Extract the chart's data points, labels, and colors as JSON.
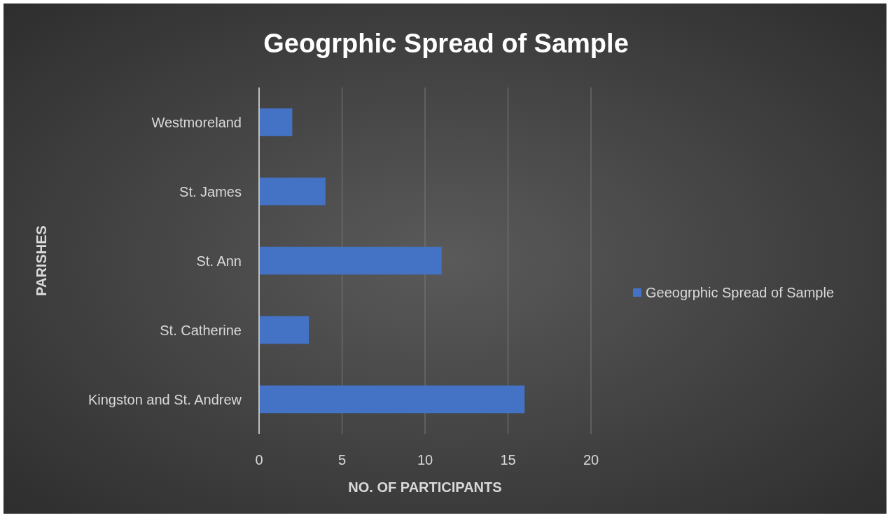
{
  "chart_data": {
    "type": "bar",
    "orientation": "horizontal",
    "title": "Geogrphic Spread of Sample",
    "xlabel": "NO. OF PARTICIPANTS",
    "ylabel": "PARISHES",
    "categories": [
      "Westmoreland",
      "St. James",
      "St. Ann",
      "St. Catherine",
      "Kingston and St. Andrew"
    ],
    "series": [
      {
        "name": "Geeogrphic Spread of Sample",
        "color": "#4472c4",
        "values": [
          2,
          4,
          11,
          3,
          16
        ]
      }
    ],
    "xlim": [
      0,
      20
    ],
    "xticks": [
      0,
      5,
      10,
      15,
      20
    ],
    "grid": "x",
    "legend": "right"
  }
}
